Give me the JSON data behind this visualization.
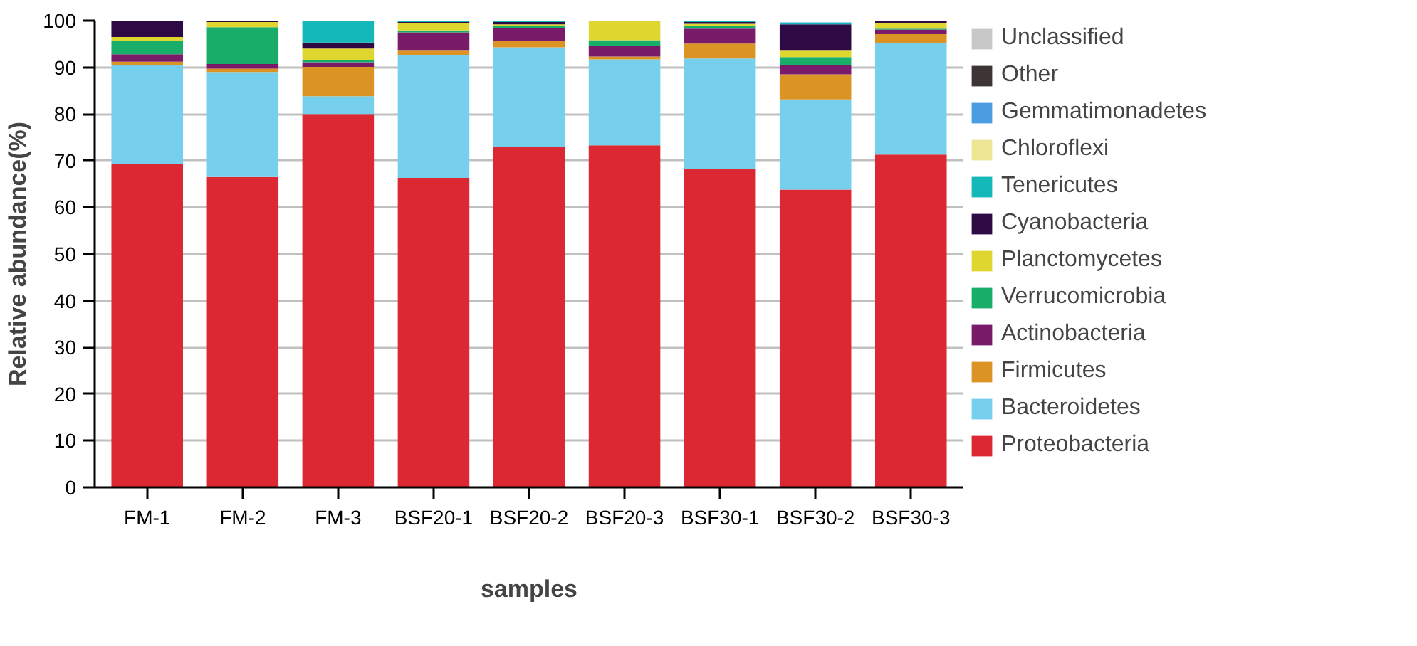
{
  "chart_data": {
    "type": "bar",
    "stacked": true,
    "xlabel": "samples",
    "ylabel": "Relative abundance(%)",
    "categories": [
      "FM-1",
      "FM-2",
      "FM-3",
      "BSF20-1",
      "BSF20-2",
      "BSF20-3",
      "BSF30-1",
      "BSF30-2",
      "BSF30-3"
    ],
    "ylim": [
      0,
      100
    ],
    "yticks": [
      0,
      10,
      20,
      30,
      40,
      50,
      60,
      70,
      80,
      90,
      100
    ],
    "grid": "y",
    "legend": "right",
    "series": [
      {
        "name": "Proteobacteria",
        "color": "#dc2832",
        "values": [
          69.3,
          66.5,
          80,
          66.3,
          73,
          73.3,
          68.2,
          63.8,
          71.3
        ]
      },
      {
        "name": "Bacteroidetes",
        "color": "#76cfec",
        "values": [
          21.2,
          22.5,
          3.8,
          26.3,
          21.3,
          18.4,
          23.7,
          19.3,
          23.9
        ]
      },
      {
        "name": "Firmicutes",
        "color": "#db9423",
        "values": [
          0.7,
          0.7,
          6.3,
          1.1,
          1.3,
          0.6,
          3.2,
          5.4,
          1.9
        ]
      },
      {
        "name": "Actinobacteria",
        "color": "#7a1b6a",
        "values": [
          1.6,
          1.0,
          1.0,
          3.8,
          2.8,
          2.2,
          3.2,
          2.0,
          1.0
        ]
      },
      {
        "name": "Verrucomicrobia",
        "color": "#18ad68",
        "values": [
          2.9,
          7.9,
          0.5,
          0.4,
          0.4,
          1.3,
          0.5,
          1.7,
          0.2
        ]
      },
      {
        "name": "Planctomycetes",
        "color": "#e0d630",
        "values": [
          0.8,
          1.1,
          2.4,
          1.5,
          0.4,
          4.2,
          0.5,
          1.5,
          1.1
        ]
      },
      {
        "name": "Cyanobacteria",
        "color": "#2e0a45",
        "values": [
          3.4,
          0.3,
          1.3,
          0.3,
          0.5,
          0,
          0.4,
          5.5,
          0.5
        ]
      },
      {
        "name": "Tenericutes",
        "color": "#14b8b8",
        "values": [
          0.1,
          0,
          4.7,
          0.2,
          0.3,
          0,
          0.3,
          0.3,
          0.1
        ]
      },
      {
        "name": "Chloroflexi",
        "color": "#ede694",
        "values": [
          0,
          0,
          0,
          0,
          0,
          0,
          0,
          0,
          0
        ]
      },
      {
        "name": "Gemmatimonadetes",
        "color": "#4a9de0",
        "values": [
          0,
          0,
          0,
          0.1,
          0,
          0,
          0,
          0.1,
          0
        ]
      },
      {
        "name": "Other",
        "color": "#3d3535",
        "values": [
          0,
          0,
          0,
          0,
          0,
          0,
          0,
          0,
          0
        ]
      },
      {
        "name": "Unclassified",
        "color": "#c8c8c8",
        "values": [
          0,
          0,
          0,
          0,
          0,
          0,
          0,
          0,
          0
        ]
      }
    ]
  }
}
